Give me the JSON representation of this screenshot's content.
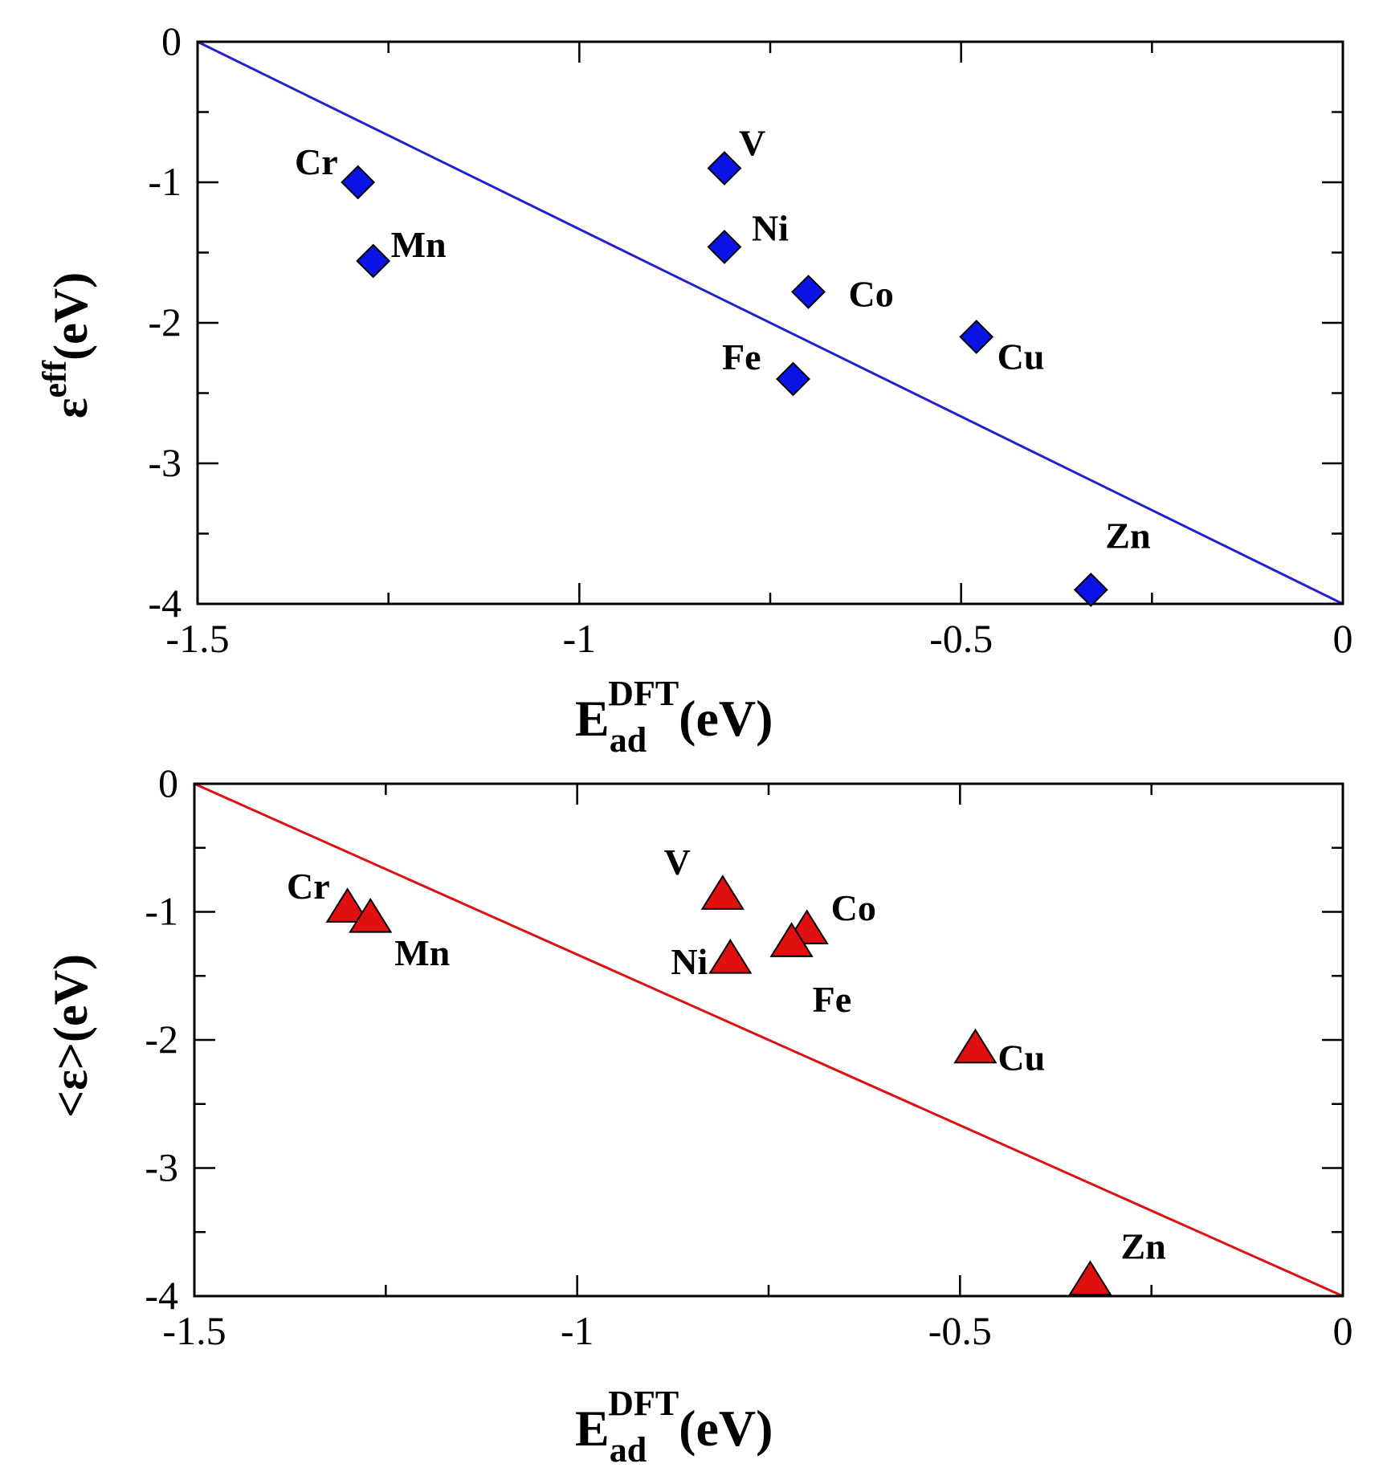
{
  "chart_data": [
    {
      "type": "scatter",
      "xlabel": {
        "main": "E",
        "sub": "ad",
        "sup": "DFT",
        "unit": "(eV)"
      },
      "ylabel": {
        "main": "ε",
        "sup": "eff",
        "unit": "(eV)"
      },
      "xlim": [
        -1.5,
        0
      ],
      "ylim": [
        -4,
        0
      ],
      "xticks": [
        -1.5,
        -1,
        -0.5,
        0
      ],
      "xtick_labels": [
        "-1.5",
        "-1",
        "-0.5",
        "0"
      ],
      "yticks": [
        0,
        -1,
        -2,
        -3,
        -4
      ],
      "ytick_labels": [
        "0",
        "-1",
        "-2",
        "-3",
        "-4"
      ],
      "marker": "diamond",
      "color": "#0a14e6",
      "line_color": "#2222cc",
      "fit_line": {
        "x": [
          -1.5,
          0
        ],
        "y": [
          0,
          -4
        ]
      },
      "points": [
        {
          "label": "Cr",
          "x": -1.29,
          "y": -1.0
        },
        {
          "label": "Mn",
          "x": -1.27,
          "y": -1.56
        },
        {
          "label": "V",
          "x": -0.81,
          "y": -0.9
        },
        {
          "label": "Ni",
          "x": -0.81,
          "y": -1.46
        },
        {
          "label": "Co",
          "x": -0.7,
          "y": -1.78
        },
        {
          "label": "Fe",
          "x": -0.72,
          "y": -2.4
        },
        {
          "label": "Cu",
          "x": -0.48,
          "y": -2.1
        },
        {
          "label": "Zn",
          "x": -0.33,
          "y": -3.9
        }
      ]
    },
    {
      "type": "scatter",
      "xlabel": {
        "main": "E",
        "sub": "ad",
        "sup": "DFT",
        "unit": "(eV)"
      },
      "ylabel": {
        "main": "<ε>(eV)"
      },
      "xlim": [
        -1.5,
        0
      ],
      "ylim": [
        -4,
        0
      ],
      "xticks": [
        -1.5,
        -1,
        -0.5,
        0
      ],
      "xtick_labels": [
        "-1.5",
        "-1",
        "-0.5",
        "0"
      ],
      "yticks": [
        0,
        -1,
        -2,
        -3,
        -4
      ],
      "ytick_labels": [
        "0",
        "-1",
        "-2",
        "-3",
        "-4"
      ],
      "marker": "triangle",
      "color": "#e01010",
      "line_color": "#dd1111",
      "fit_line": {
        "x": [
          -1.5,
          0
        ],
        "y": [
          0,
          -4
        ]
      },
      "points": [
        {
          "label": "Cr",
          "x": -1.3,
          "y": -0.96
        },
        {
          "label": "Mn",
          "x": -1.27,
          "y": -1.04
        },
        {
          "label": "V",
          "x": -0.81,
          "y": -0.86
        },
        {
          "label": "Ni",
          "x": -0.8,
          "y": -1.36
        },
        {
          "label": "Co",
          "x": -0.7,
          "y": -1.13
        },
        {
          "label": "Fe",
          "x": -0.72,
          "y": -1.23
        },
        {
          "label": "Cu",
          "x": -0.48,
          "y": -2.06
        },
        {
          "label": "Zn",
          "x": -0.33,
          "y": -3.87
        }
      ]
    }
  ]
}
